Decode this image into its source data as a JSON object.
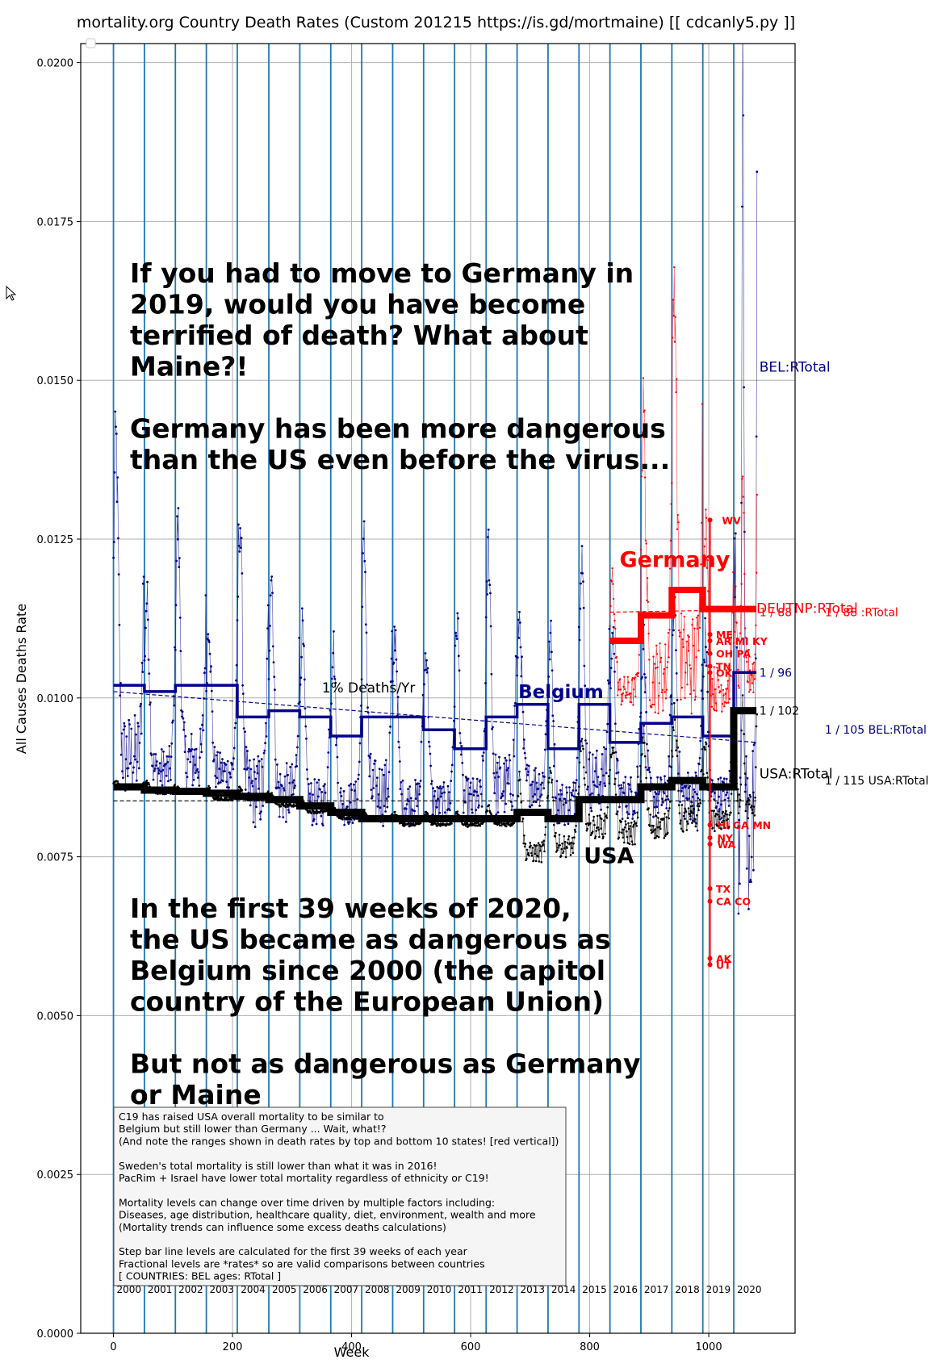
{
  "chart_data": {
    "type": "line",
    "title": "mortality.org Country Death Rates (Custom 201215  https://is.gd/mortmaine) [[ cdcanly5.py ]]",
    "xlabel": "Week",
    "ylabel": "All Causes Deaths Rate",
    "xlim": [
      -55,
      1145
    ],
    "ylim": [
      0,
      0.0203
    ],
    "xticks": [
      0,
      200,
      400,
      600,
      800,
      1000
    ],
    "yticks": [
      0.0,
      0.0025,
      0.005,
      0.0075,
      0.01,
      0.0125,
      0.015,
      0.0175,
      0.02
    ],
    "ytick_labels": [
      "0.0000",
      "0.0025",
      "0.0050",
      "0.0075",
      "0.0100",
      "0.0125",
      "0.0150",
      "0.0175",
      "0.0200"
    ],
    "grid": true,
    "year_boundaries": [
      0,
      52,
      104,
      156,
      208,
      261,
      313,
      365,
      417,
      469,
      521,
      573,
      626,
      678,
      730,
      782,
      834,
      886,
      938,
      990,
      1042
    ],
    "year_labels": [
      "2000",
      "2001",
      "2002",
      "2003",
      "2004",
      "2005",
      "2006",
      "2007",
      "2008",
      "2009",
      "2010",
      "2011",
      "2012",
      "2013",
      "2014",
      "2015",
      "2016",
      "2017",
      "2018",
      "2019",
      "2020"
    ],
    "series": [
      {
        "name": "BEL:RTotal",
        "color": "#00008b",
        "step_levels": [
          0.0102,
          0.0101,
          0.0102,
          0.0102,
          0.0097,
          0.0098,
          0.0097,
          0.0094,
          0.0097,
          0.0097,
          0.0095,
          0.0092,
          0.0097,
          0.0099,
          0.0092,
          0.0099,
          0.0093,
          0.0096,
          0.0097,
          0.0094,
          0.0104
        ],
        "weekly_peaks": [
          0.0143,
          0.0117,
          0.0129,
          0.0113,
          0.0131,
          0.0122,
          0.0112,
          0.011,
          0.0126,
          0.0112,
          0.0109,
          0.0114,
          0.0126,
          0.0114,
          0.0111,
          0.0126,
          0.0112,
          0.0111,
          0.0117,
          0.0111,
          0.0194
        ],
        "weekly_troughs": [
          0.0088,
          0.0087,
          0.0088,
          0.0087,
          0.0083,
          0.0083,
          0.0082,
          0.0082,
          0.0083,
          0.0082,
          0.0082,
          0.0082,
          0.0084,
          0.0085,
          0.0082,
          0.0085,
          0.0083,
          0.0083,
          0.0083,
          0.0083,
          0.0079
        ]
      },
      {
        "name": "USA:RTotal",
        "color": "#000000",
        "step_levels": [
          0.0086,
          0.00855,
          0.00853,
          0.0085,
          0.00845,
          0.0084,
          0.0083,
          0.0082,
          0.0081,
          0.0081,
          0.0081,
          0.0081,
          0.0081,
          0.0082,
          0.0081,
          0.0084,
          0.0084,
          0.0086,
          0.0087,
          0.0086,
          0.0098
        ],
        "weekly_peaks": [
          0.0087,
          0.0087,
          0.0086,
          0.0086,
          0.0086,
          0.0085,
          0.0084,
          0.0083,
          0.0082,
          0.0082,
          0.0082,
          0.0082,
          0.0083,
          0.0088,
          0.009,
          0.0094,
          0.0094,
          0.0095,
          0.0098,
          0.0093,
          0.0101
        ],
        "weekly_troughs": [
          0.0086,
          0.0085,
          0.0085,
          0.0084,
          0.0084,
          0.0083,
          0.0082,
          0.0081,
          0.0081,
          0.008,
          0.008,
          0.008,
          0.008,
          0.0075,
          0.0076,
          0.0079,
          0.0078,
          0.0079,
          0.008,
          0.008,
          0.0083
        ]
      },
      {
        "name": "DEUTNP:RTotal",
        "color": "#ff0000",
        "start_year_index": 16,
        "step_levels": [
          0.0109,
          0.0113,
          0.0117,
          0.0114,
          0.0114
        ],
        "weekly_peaks": [
          0.012,
          0.0148,
          0.0169,
          0.013,
          0.0136
        ],
        "weekly_troughs": [
          0.01,
          0.0101,
          0.0102,
          0.01,
          0.0104
        ]
      }
    ],
    "trend_lines": [
      {
        "series": "BEL:RTotal",
        "x": [
          0,
          1080
        ],
        "y": [
          0.0101,
          0.0093
        ]
      },
      {
        "series": "USA:RTotal",
        "x": [
          0,
          1080
        ],
        "y": [
          0.00838,
          0.00838
        ]
      },
      {
        "series": "DEUTNP:RTotal",
        "x": [
          834,
          1080
        ],
        "y": [
          0.01135,
          0.01139
        ]
      }
    ],
    "state_markers": [
      {
        "label": "WV",
        "x": 1018,
        "y": 0.0128
      },
      {
        "label": "ME",
        "x": 1008,
        "y": 0.011
      },
      {
        "label": "AR  MI  KY",
        "x": 1008,
        "y": 0.0109
      },
      {
        "label": "OH  PA",
        "x": 1008,
        "y": 0.0107
      },
      {
        "label": "TN",
        "x": 1008,
        "y": 0.0105
      },
      {
        "label": "OK",
        "x": 1008,
        "y": 0.0104
      },
      {
        "label": "HI   GA  MN",
        "x": 1010,
        "y": 0.008
      },
      {
        "label": "NY",
        "x": 1010,
        "y": 0.0078
      },
      {
        "label": "WA",
        "x": 1010,
        "y": 0.0077
      },
      {
        "label": "TX",
        "x": 1008,
        "y": 0.007
      },
      {
        "label": "CA  CO",
        "x": 1008,
        "y": 0.0068
      },
      {
        "label": "AK",
        "x": 1008,
        "y": 0.0059
      },
      {
        "label": "UT",
        "x": 1008,
        "y": 0.0058
      }
    ],
    "text_labels": [
      {
        "text": "BEL:RTotal",
        "x": 1085,
        "y": 0.0152,
        "color": "#00008b"
      },
      {
        "text": "DEUTNP:RTotal",
        "x": 1080,
        "y": 0.0114,
        "color": "#ff0000"
      },
      {
        "text": "1 / 88",
        "x": 1085,
        "y": 0.01135,
        "color": "#ff0000"
      },
      {
        "text": "1 / 88 :RTotal",
        "x": 1195,
        "y": 0.01135,
        "color": "#ff0000"
      },
      {
        "text": "1 / 96",
        "x": 1085,
        "y": 0.0104,
        "color": "#00008b"
      },
      {
        "text": "1 / 102",
        "x": 1085,
        "y": 0.0098,
        "color": "#000000"
      },
      {
        "text": "1 / 105 BEL:RTotal",
        "x": 1195,
        "y": 0.0095,
        "color": "#00008b"
      },
      {
        "text": "USA:RTotal",
        "x": 1085,
        "y": 0.0088,
        "color": "#000000"
      },
      {
        "text": "1 / 115 USA:RTotal",
        "x": 1195,
        "y": 0.0087,
        "color": "#000000"
      },
      {
        "text": "1% Deaths/Yr",
        "x": 350,
        "y": 0.01015,
        "color": "#000000"
      }
    ]
  },
  "annotations": {
    "headline_top": [
      "If you had to move to Germany in",
      "2019, would you have become",
      "terrified of death? What about",
      "Maine?!",
      "",
      "Germany has been more dangerous",
      "than the US even before the virus..."
    ],
    "headline_bottom": [
      "In the first 39 weeks of 2020,",
      "the US became as dangerous as",
      "Belgium since 2000 (the capitol",
      "country of the European Union)",
      "",
      "But not as dangerous as Germany",
      "or Maine"
    ],
    "country_labels": [
      {
        "text": "Germany",
        "color": "#ff0000"
      },
      {
        "text": "Belgium",
        "color": "#00008b"
      },
      {
        "text": "USA",
        "color": "#000000"
      }
    ],
    "note_box": [
      "C19 has raised USA overall mortality to be similar to",
      "Belgium but still lower than Germany ... Wait, what!?",
      "(And note the ranges shown in death rates by top and bottom 10 states! [red vertical])",
      "",
      "Sweden's total mortality is still lower than what it was in 2016!",
      "PacRim + Israel have lower total mortality regardless of ethnicity or C19!",
      "",
      "Mortality levels can change over time driven by multiple factors including:",
      "Diseases, age distribution, healthcare quality, diet, environment, wealth and more",
      "(Mortality trends can influence some excess deaths calculations)",
      "",
      "Step bar line levels are calculated for the first 39 weeks of each year",
      "Fractional levels are *rates* so are valid comparisons between countries",
      "          [ COUNTRIES: BEL ages: RTotal ]"
    ]
  },
  "colors": {
    "belgium": "#00008b",
    "usa": "#000000",
    "germany": "#ff0000",
    "year_line": "#1f77b4",
    "grid": "#b0b0b0"
  }
}
